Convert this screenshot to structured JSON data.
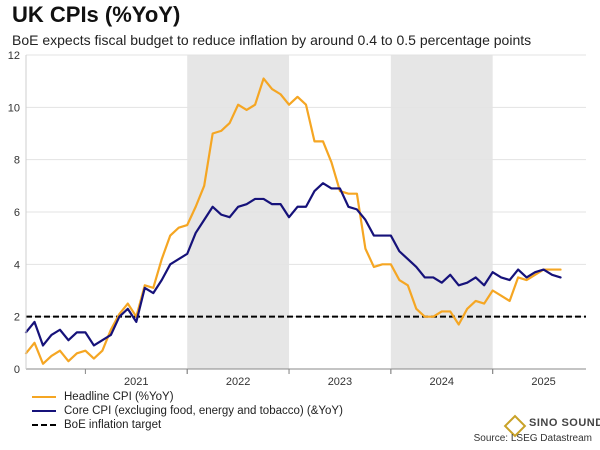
{
  "title": "UK CPIs (%YoY)",
  "subtitle": "BoE expects fiscal budget to reduce inflation by around 0.4 to 0.5 percentage points",
  "source": "Source: LSEG Datastream",
  "logo": {
    "text": "SINO SOUND"
  },
  "colors": {
    "headline": "#f5a623",
    "core": "#16127a",
    "target": "#000000",
    "shade": "#e6e6e6",
    "grid": "#e3e3e3"
  },
  "legend": [
    {
      "label": "Headline CPI (%YoY)",
      "series": "headline"
    },
    {
      "label": "Core CPI (excluging food, energy and tobacco) (&YoY)",
      "series": "core"
    },
    {
      "label": "BoE inflation target",
      "series": "target"
    }
  ],
  "chart_data": {
    "type": "line",
    "title": "UK CPIs (%YoY)",
    "subtitle": "BoE expects fiscal budget to reduce inflation by around 0.4 to 0.5 percentage points",
    "ylim": [
      0,
      12
    ],
    "y_ticks": [
      0,
      2,
      4,
      6,
      8,
      10,
      12
    ],
    "x_range": [
      "2020-06",
      "2025-12"
    ],
    "x_tick_labels": [
      "2021",
      "2022",
      "2023",
      "2024",
      "2025"
    ],
    "grid": true,
    "legend_position": "bottom",
    "shaded_periods": [
      [
        "2022-01",
        "2022-12"
      ],
      [
        "2024-01",
        "2024-12"
      ]
    ],
    "series": [
      {
        "name": "Headline CPI (%YoY)",
        "key": "headline",
        "x": [
          "2020-06",
          "2020-07",
          "2020-08",
          "2020-09",
          "2020-10",
          "2020-11",
          "2020-12",
          "2021-01",
          "2021-02",
          "2021-03",
          "2021-04",
          "2021-05",
          "2021-06",
          "2021-07",
          "2021-08",
          "2021-09",
          "2021-10",
          "2021-11",
          "2021-12",
          "2022-01",
          "2022-02",
          "2022-03",
          "2022-04",
          "2022-05",
          "2022-06",
          "2022-07",
          "2022-08",
          "2022-09",
          "2022-10",
          "2022-11",
          "2022-12",
          "2023-01",
          "2023-02",
          "2023-03",
          "2023-04",
          "2023-05",
          "2023-06",
          "2023-07",
          "2023-08",
          "2023-09",
          "2023-10",
          "2023-11",
          "2023-12",
          "2024-01",
          "2024-02",
          "2024-03",
          "2024-04",
          "2024-05",
          "2024-06",
          "2024-07",
          "2024-08",
          "2024-09",
          "2024-10",
          "2024-11",
          "2024-12",
          "2025-01",
          "2025-02",
          "2025-03",
          "2025-04",
          "2025-05",
          "2025-06",
          "2025-07",
          "2025-08",
          "2025-09"
        ],
        "values": [
          0.6,
          1.0,
          0.2,
          0.5,
          0.7,
          0.3,
          0.6,
          0.7,
          0.4,
          0.7,
          1.5,
          2.1,
          2.5,
          2.0,
          3.2,
          3.1,
          4.2,
          5.1,
          5.4,
          5.5,
          6.2,
          7.0,
          9.0,
          9.1,
          9.4,
          10.1,
          9.9,
          10.1,
          11.1,
          10.7,
          10.5,
          10.1,
          10.4,
          10.1,
          8.7,
          8.7,
          7.9,
          6.8,
          6.7,
          6.7,
          4.6,
          3.9,
          4.0,
          4.0,
          3.4,
          3.2,
          2.3,
          2.0,
          2.0,
          2.2,
          2.2,
          1.7,
          2.3,
          2.6,
          2.5,
          3.0,
          2.8,
          2.6,
          3.5,
          3.4,
          3.6,
          3.8,
          3.8,
          3.8
        ]
      },
      {
        "name": "Core CPI (excluging food, energy and tobacco) (&YoY)",
        "key": "core",
        "x": [
          "2020-06",
          "2020-07",
          "2020-08",
          "2020-09",
          "2020-10",
          "2020-11",
          "2020-12",
          "2021-01",
          "2021-02",
          "2021-03",
          "2021-04",
          "2021-05",
          "2021-06",
          "2021-07",
          "2021-08",
          "2021-09",
          "2021-10",
          "2021-11",
          "2021-12",
          "2022-01",
          "2022-02",
          "2022-03",
          "2022-04",
          "2022-05",
          "2022-06",
          "2022-07",
          "2022-08",
          "2022-09",
          "2022-10",
          "2022-11",
          "2022-12",
          "2023-01",
          "2023-02",
          "2023-03",
          "2023-04",
          "2023-05",
          "2023-06",
          "2023-07",
          "2023-08",
          "2023-09",
          "2023-10",
          "2023-11",
          "2023-12",
          "2024-01",
          "2024-02",
          "2024-03",
          "2024-04",
          "2024-05",
          "2024-06",
          "2024-07",
          "2024-08",
          "2024-09",
          "2024-10",
          "2024-11",
          "2024-12",
          "2025-01",
          "2025-02",
          "2025-03",
          "2025-04",
          "2025-05",
          "2025-06",
          "2025-07",
          "2025-08",
          "2025-09"
        ],
        "values": [
          1.4,
          1.8,
          0.9,
          1.3,
          1.5,
          1.1,
          1.4,
          1.4,
          0.9,
          1.1,
          1.3,
          2.0,
          2.3,
          1.8,
          3.1,
          2.9,
          3.4,
          4.0,
          4.2,
          4.4,
          5.2,
          5.7,
          6.2,
          5.9,
          5.8,
          6.2,
          6.3,
          6.5,
          6.5,
          6.3,
          6.3,
          5.8,
          6.2,
          6.2,
          6.8,
          7.1,
          6.9,
          6.9,
          6.2,
          6.1,
          5.7,
          5.1,
          5.1,
          5.1,
          4.5,
          4.2,
          3.9,
          3.5,
          3.5,
          3.3,
          3.6,
          3.2,
          3.3,
          3.5,
          3.2,
          3.7,
          3.5,
          3.4,
          3.8,
          3.5,
          3.7,
          3.8,
          3.6,
          3.5
        ]
      },
      {
        "name": "BoE inflation target",
        "key": "target",
        "constant": 2
      }
    ]
  }
}
